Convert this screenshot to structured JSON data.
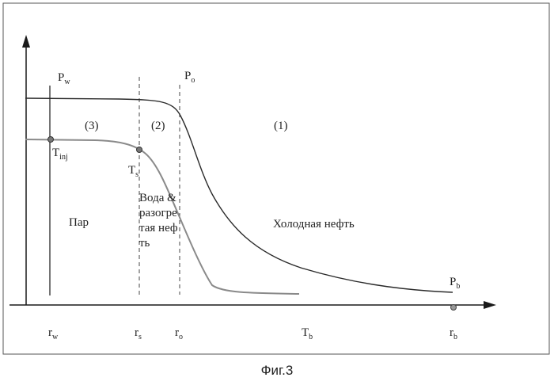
{
  "labels": {
    "p_w": "P",
    "p_w_sub": "w",
    "p_o": "P",
    "p_o_sub": "o",
    "p_b": "P",
    "p_b_sub": "b",
    "t_inj": "T",
    "t_inj_sub": "inj",
    "t_s": "T",
    "t_s_sub": "s",
    "r_w": "r",
    "r_w_sub": "w",
    "r_s": "r",
    "r_s_sub": "s",
    "r_o": "r",
    "r_o_sub": "o",
    "t_b": "T",
    "t_b_sub": "b",
    "r_b": "r",
    "r_b_sub": "b"
  },
  "regions": {
    "zone3": "(3)",
    "zone2": "(2)",
    "zone1": "(1)",
    "steam": "Пар",
    "water_oil": "Вода & разогретая нефть",
    "cold_oil": "Холодная нефть"
  },
  "caption": "Фиг.3",
  "colors": {
    "pressure_curve": "#2a2a2a",
    "temperature_curve": "#8a8a8a",
    "axes": "#1a1a1a"
  }
}
